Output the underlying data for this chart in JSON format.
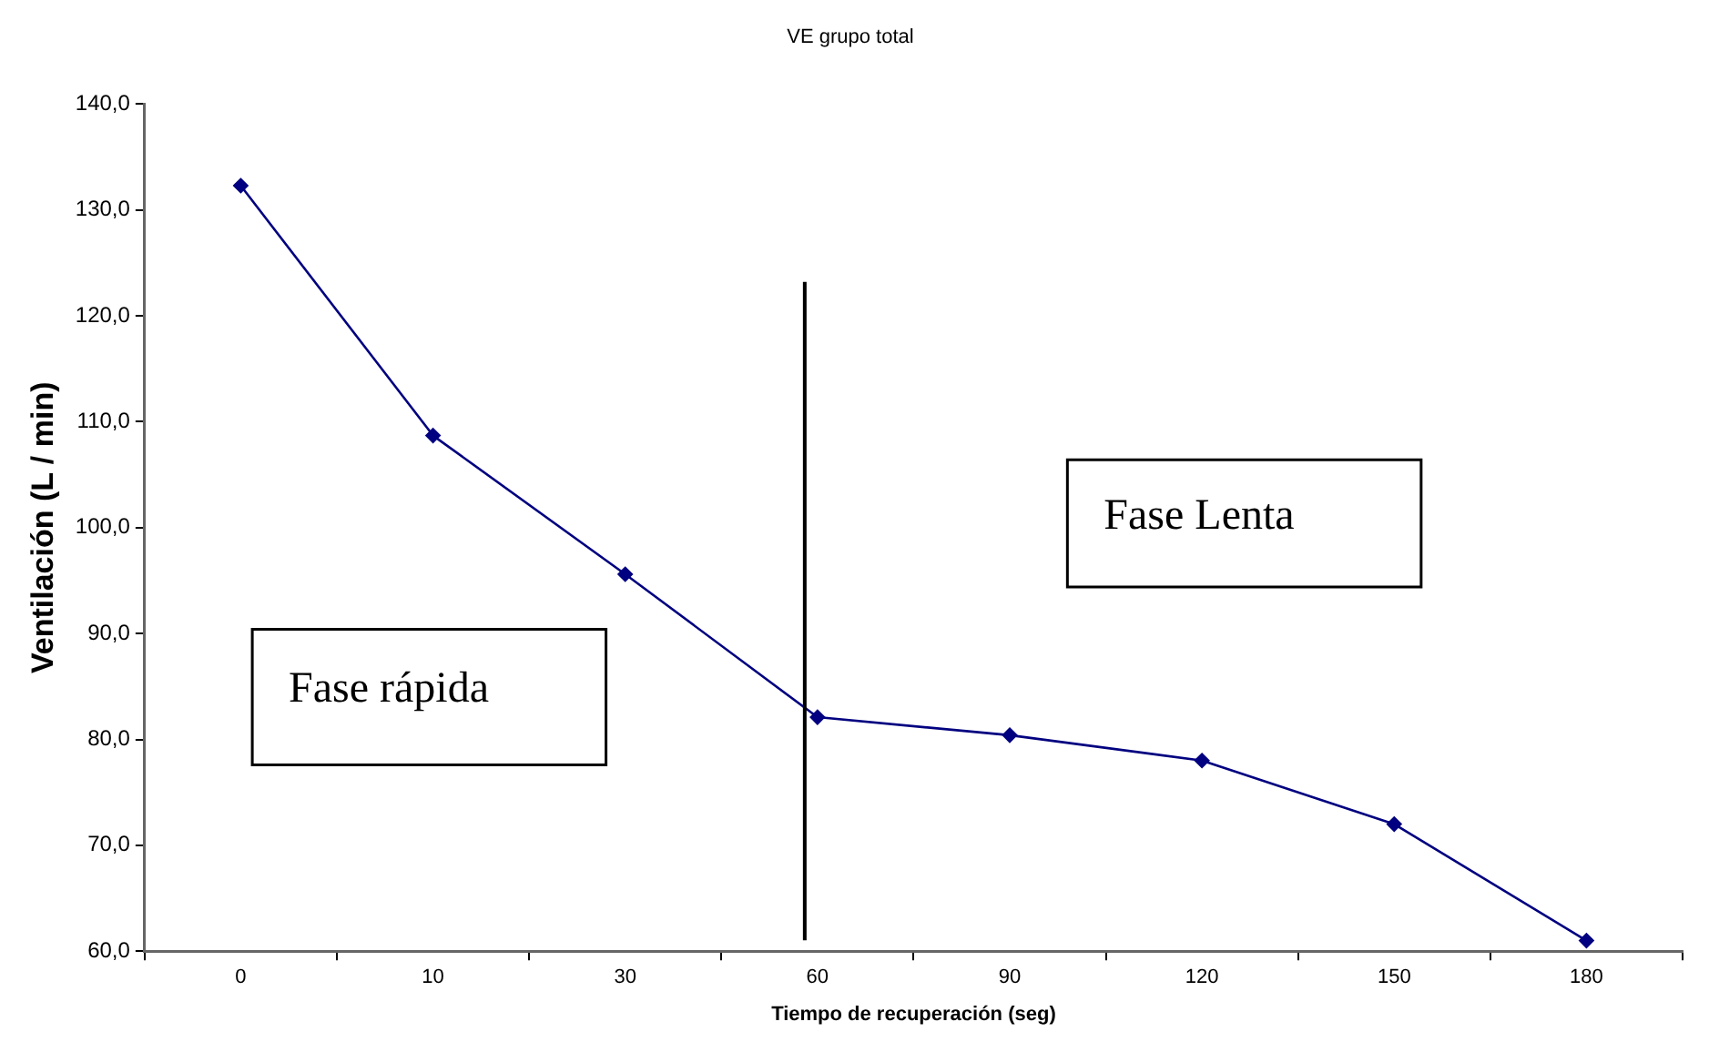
{
  "chart_data": {
    "type": "line",
    "title": "VE grupo total",
    "xlabel": "Tiempo de recuperación (seg)",
    "ylabel": "Ventilación (L / min)",
    "categories": [
      "0",
      "10",
      "30",
      "60",
      "90",
      "120",
      "150",
      "180"
    ],
    "series": [
      {
        "color": "#000080",
        "values": [
          132.3,
          108.7,
          95.6,
          82.1,
          80.4,
          78.0,
          72.0,
          61.0
        ]
      }
    ],
    "ylim": [
      60,
      140
    ],
    "yticks": [
      {
        "value": 60,
        "label": "60,0"
      },
      {
        "value": 70,
        "label": "70,0"
      },
      {
        "value": 80,
        "label": "80,0"
      },
      {
        "value": 90,
        "label": "90,0"
      },
      {
        "value": 100,
        "label": "100,0"
      },
      {
        "value": 110,
        "label": "110,0"
      },
      {
        "value": 120,
        "label": "120,0"
      },
      {
        "value": 130,
        "label": "130,0"
      },
      {
        "value": 140,
        "label": "140,0"
      }
    ],
    "ref_lines": [
      {
        "axis": "x",
        "value": "60",
        "color": "#000000"
      }
    ],
    "annotations": [
      "Fase rápida",
      "Fase Lenta"
    ],
    "grid": false,
    "legend": false,
    "marker": "diamond",
    "line_style": "solid"
  }
}
